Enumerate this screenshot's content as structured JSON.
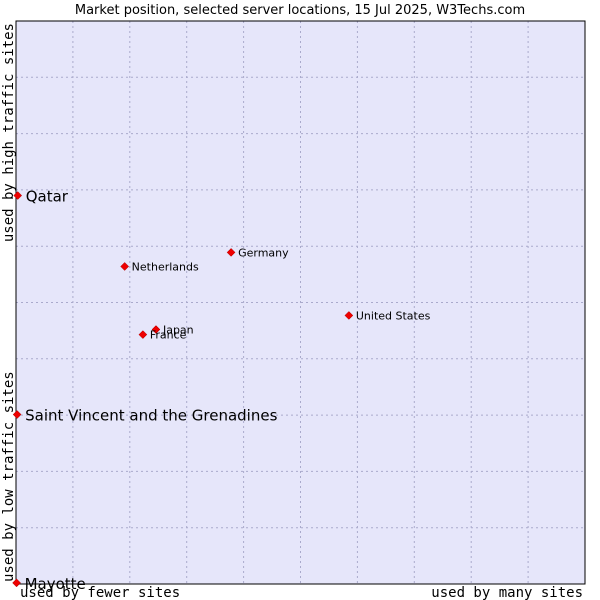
{
  "chart_data": {
    "type": "scatter",
    "title": "Market position, selected server locations, 15 Jul 2025, W3Techs.com",
    "xlabel_left": "used by fewer sites",
    "xlabel_right": "used by many sites",
    "ylabel_bottom": "used by low traffic sites",
    "ylabel_top": "used by high traffic sites",
    "xlim": [
      0,
      100
    ],
    "ylim": [
      0,
      100
    ],
    "grid": true,
    "colors": {
      "plot_background": "#e6e6fa",
      "grid": "#aaaacc",
      "marker": "#ee0000",
      "border": "#000000"
    },
    "points": [
      {
        "label": "Qatar",
        "x": 0.3,
        "y": 69.0,
        "emphasis": true
      },
      {
        "label": "Saint Vincent and the Grenadines",
        "x": 0.2,
        "y": 30.1,
        "emphasis": true
      },
      {
        "label": "Mayotte",
        "x": 0.1,
        "y": 0.2,
        "emphasis": true
      },
      {
        "label": "Germany",
        "x": 37.8,
        "y": 58.9,
        "emphasis": false
      },
      {
        "label": "Netherlands",
        "x": 19.1,
        "y": 56.4,
        "emphasis": false
      },
      {
        "label": "United States",
        "x": 58.5,
        "y": 47.7,
        "emphasis": false
      },
      {
        "label": "Japan",
        "x": 24.6,
        "y": 45.2,
        "emphasis": false
      },
      {
        "label": "France",
        "x": 22.3,
        "y": 44.3,
        "emphasis": false
      }
    ]
  }
}
